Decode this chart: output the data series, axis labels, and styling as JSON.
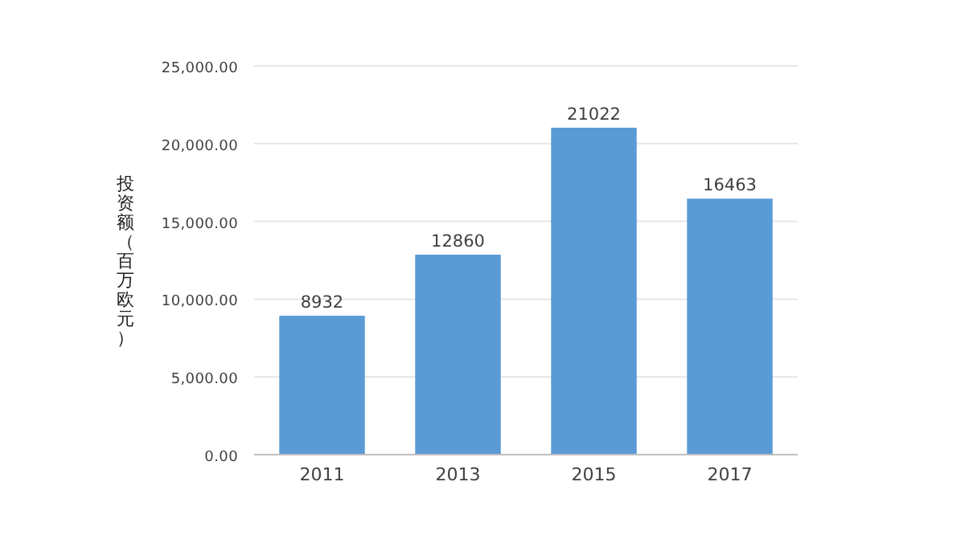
{
  "chart_data": {
    "type": "bar",
    "ylabel": "投资额（百万欧元）",
    "categories": [
      "2011",
      "2013",
      "2015",
      "2017"
    ],
    "values": [
      8932,
      12860,
      21022,
      16463
    ],
    "color": "#5b9bd5",
    "ylim": [
      0,
      25000
    ],
    "yticks": [
      {
        "value": 0,
        "label": "0.00"
      },
      {
        "value": 5000,
        "label": "5,000.00"
      },
      {
        "value": 10000,
        "label": "10,000.00"
      },
      {
        "value": 15000,
        "label": "15,000.00"
      },
      {
        "value": 20000,
        "label": "20,000.00"
      },
      {
        "value": 25000,
        "label": "25,000.00"
      }
    ],
    "grid": "y",
    "data_labels": true
  }
}
